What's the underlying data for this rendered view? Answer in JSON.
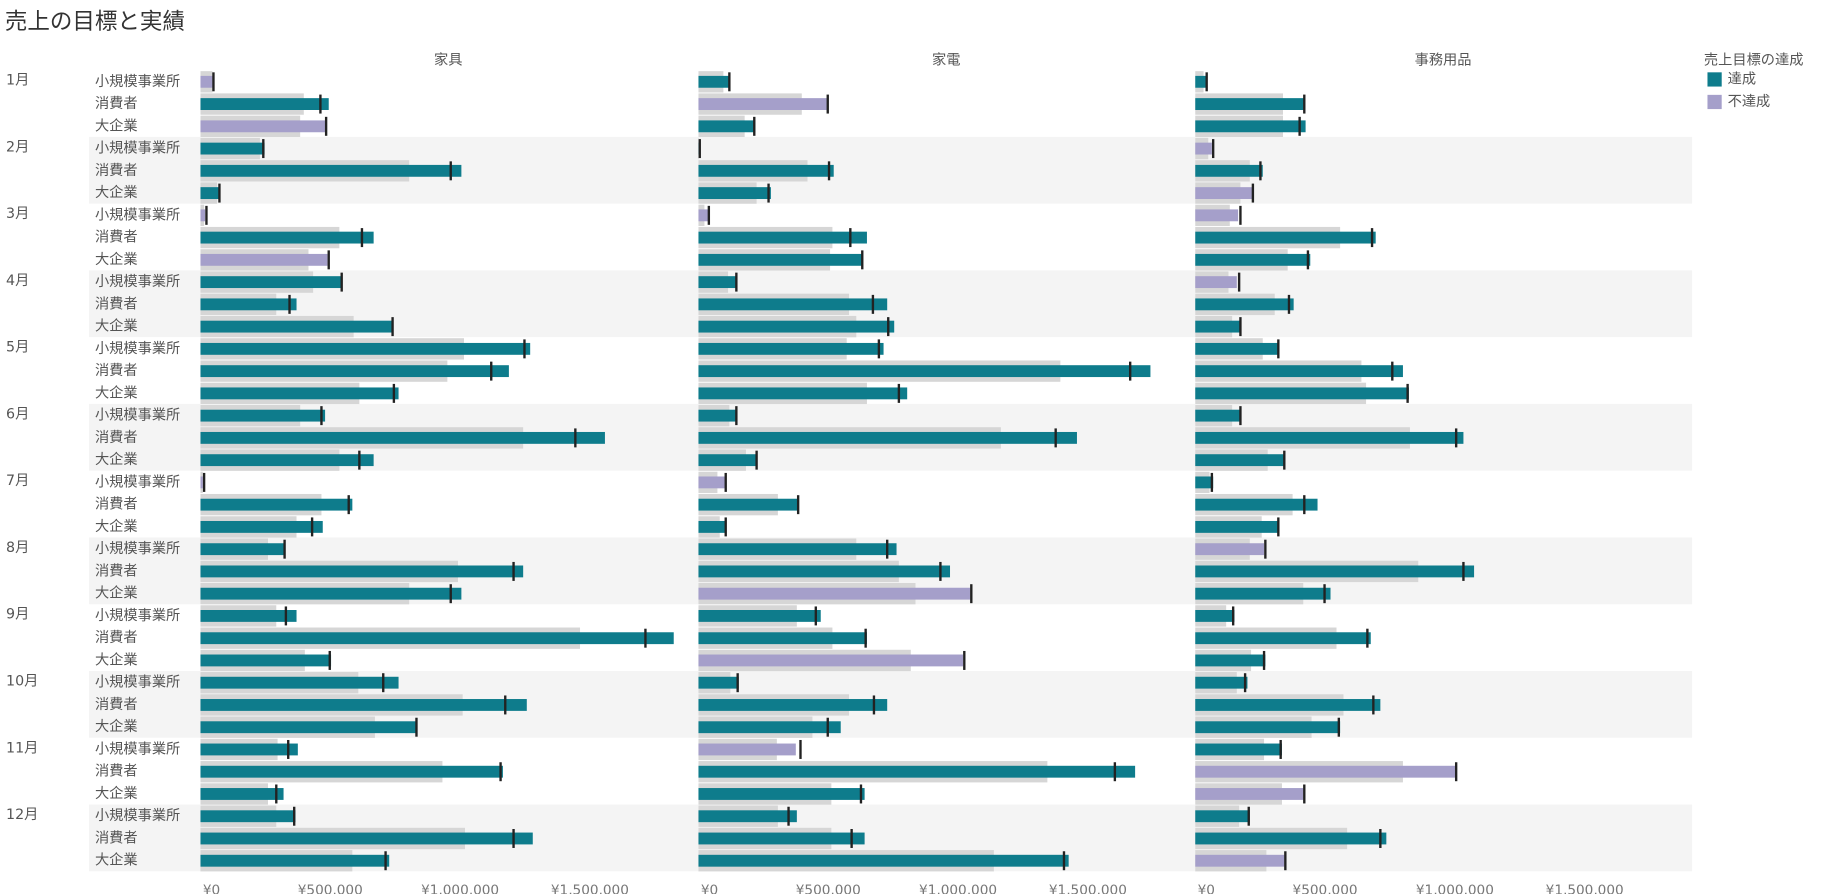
{
  "chart_data": {
    "type": "bullet",
    "title": "売上の目標と実績",
    "months": [
      "1月",
      "2月",
      "3月",
      "4月",
      "5月",
      "6月",
      "7月",
      "8月",
      "9月",
      "10月",
      "11月",
      "12月"
    ],
    "segments": [
      "小規模事業所",
      "消費者",
      "大企業"
    ],
    "xlim": [
      0,
      1900000
    ],
    "xticks": [
      {
        "value": 0,
        "label": "¥0"
      },
      {
        "value": 500000,
        "label": "¥500,000"
      },
      {
        "value": 1000000,
        "label": "¥1,000,000"
      },
      {
        "value": 1500000,
        "label": "¥1,500,000"
      }
    ],
    "grid": false,
    "reference_color": "#d6d6d6",
    "target_color": "#222222",
    "legend": {
      "title": "売上目標の達成",
      "position": "right",
      "items": [
        {
          "name": "達成",
          "color": "#0e7c8c"
        },
        {
          "name": "不達成",
          "color": "#a59fca"
        }
      ]
    },
    "panels": [
      {
        "name": "家具",
        "actual": [
          46000,
          494000,
          480000,
          247000,
          1005000,
          73000,
          18000,
          667000,
          489000,
          544000,
          370000,
          740000,
          1270000,
          1188000,
          763000,
          480000,
          1558000,
          667000,
          9000,
          585000,
          471000,
          324000,
          1243000,
          1005000,
          370000,
          1823000,
          503000,
          763000,
          1257000,
          836000,
          375000,
          1165000,
          320000,
          366000,
          1280000,
          727000
        ],
        "target": [
          50000,
          462000,
          484000,
          242000,
          964000,
          73000,
          23000,
          622000,
          494000,
          544000,
          343000,
          740000,
          1248000,
          1120000,
          745000,
          466000,
          1444000,
          612000,
          14000,
          571000,
          430000,
          324000,
          1206000,
          964000,
          329000,
          1714000,
          498000,
          704000,
          1174000,
          832000,
          338000,
          1156000,
          292000,
          361000,
          1206000,
          713000
        ],
        "reference": [
          46000,
          398000,
          384000,
          229000,
          804000,
          64000,
          14000,
          535000,
          416000,
          434000,
          292000,
          590000,
          1015000,
          951000,
          612000,
          384000,
          1243000,
          535000,
          9000,
          466000,
          370000,
          260000,
          992000,
          804000,
          292000,
          1462000,
          402000,
          608000,
          1010000,
          672000,
          297000,
          932000,
          260000,
          292000,
          1019000,
          585000
        ]
      },
      {
        "name": "家電",
        "actual": [
          119000,
          494000,
          219000,
          5000,
          521000,
          279000,
          37000,
          649000,
          631000,
          146000,
          727000,
          754000,
          713000,
          1741000,
          804000,
          148000,
          1458000,
          224000,
          101000,
          384000,
          105000,
          763000,
          969000,
          1047000,
          471000,
          649000,
          1019000,
          155000,
          727000,
          548000,
          375000,
          1682000,
          640000,
          379000,
          640000,
          1426000
        ],
        "target": [
          119000,
          498000,
          215000,
          5000,
          503000,
          270000,
          40000,
          585000,
          631000,
          146000,
          672000,
          731000,
          695000,
          1663000,
          772000,
          146000,
          1376000,
          224000,
          105000,
          384000,
          105000,
          727000,
          932000,
          1051000,
          452000,
          644000,
          1024000,
          151000,
          676000,
          498000,
          393000,
          1604000,
          626000,
          347000,
          590000,
          1408000
        ],
        "reference": [
          96000,
          398000,
          178000,
          2000,
          420000,
          224000,
          23000,
          516000,
          507000,
          114000,
          580000,
          608000,
          571000,
          1394000,
          649000,
          119000,
          1165000,
          183000,
          73000,
          306000,
          82000,
          608000,
          772000,
          836000,
          379000,
          516000,
          818000,
          123000,
          580000,
          439000,
          302000,
          1344000,
          512000,
          306000,
          512000,
          1138000
        ]
      },
      {
        "name": "事務用品",
        "actual": [
          46000,
          420000,
          425000,
          64000,
          260000,
          219000,
          165000,
          695000,
          443000,
          160000,
          379000,
          178000,
          324000,
          800000,
          823000,
          178000,
          1033000,
          347000,
          69000,
          471000,
          320000,
          265000,
          1074000,
          521000,
          151000,
          676000,
          270000,
          201000,
          713000,
          558000,
          334000,
          1001000,
          416000,
          210000,
          736000,
          343000
        ],
        "target": [
          44000,
          420000,
          402000,
          69000,
          251000,
          222000,
          174000,
          681000,
          434000,
          169000,
          361000,
          174000,
          320000,
          759000,
          818000,
          174000,
          1005000,
          343000,
          64000,
          420000,
          320000,
          270000,
          1033000,
          498000,
          146000,
          663000,
          265000,
          192000,
          686000,
          553000,
          329000,
          1005000,
          420000,
          206000,
          713000,
          347000
        ],
        "reference": [
          32000,
          338000,
          338000,
          50000,
          210000,
          174000,
          133000,
          558000,
          356000,
          128000,
          306000,
          142000,
          260000,
          640000,
          658000,
          142000,
          827000,
          279000,
          55000,
          375000,
          256000,
          210000,
          859000,
          416000,
          119000,
          544000,
          215000,
          160000,
          571000,
          448000,
          265000,
          800000,
          334000,
          169000,
          585000,
          274000
        ]
      }
    ]
  }
}
